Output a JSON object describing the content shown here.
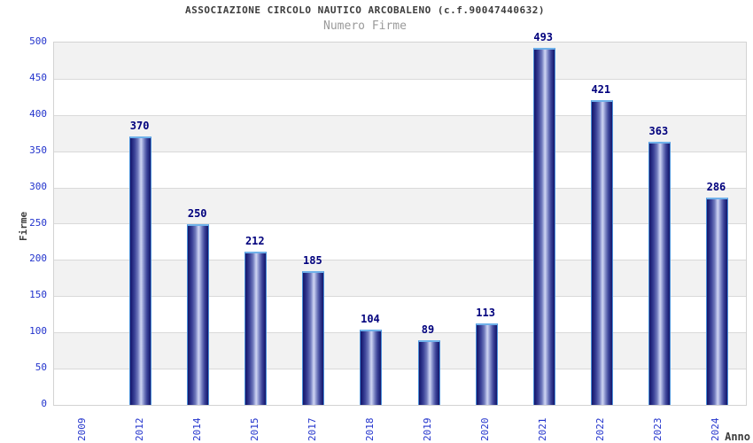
{
  "chart_data": {
    "type": "bar",
    "title": "ASSOCIAZIONE CIRCOLO NAUTICO ARCOBALENO (c.f.90047440632)",
    "subtitle": "Numero Firme",
    "xlabel": "Anno",
    "ylabel": "Firme",
    "categories": [
      "2009",
      "2012",
      "2014",
      "2015",
      "2017",
      "2018",
      "2019",
      "2020",
      "2021",
      "2022",
      "2023",
      "2024"
    ],
    "values": [
      0,
      370,
      250,
      212,
      185,
      104,
      89,
      113,
      493,
      421,
      363,
      286
    ],
    "value_labels_shown_for_zero": false,
    "ylim": [
      0,
      500
    ],
    "y_ticks": [
      0,
      50,
      100,
      150,
      200,
      250,
      300,
      350,
      400,
      450,
      500
    ],
    "grid": "horizontal alternating bands every 50 units, light gridlines at each tick",
    "legend_position": "none",
    "colors": {
      "bar_edge": "#16166b",
      "bar_highlight": "#cfd5f2",
      "bar_outline": "#4a90d9",
      "bar_cap": "#6fb1ea",
      "value_label": "#00007d",
      "tick_label": "#2233cc",
      "band_gray": "#f2f2f2",
      "gridline": "#d9d9d9",
      "plot_border": "#d3d3d3",
      "title_text": "#3c3c3c",
      "subtitle_text": "#9a9a9a",
      "background": "#ffffff"
    }
  }
}
